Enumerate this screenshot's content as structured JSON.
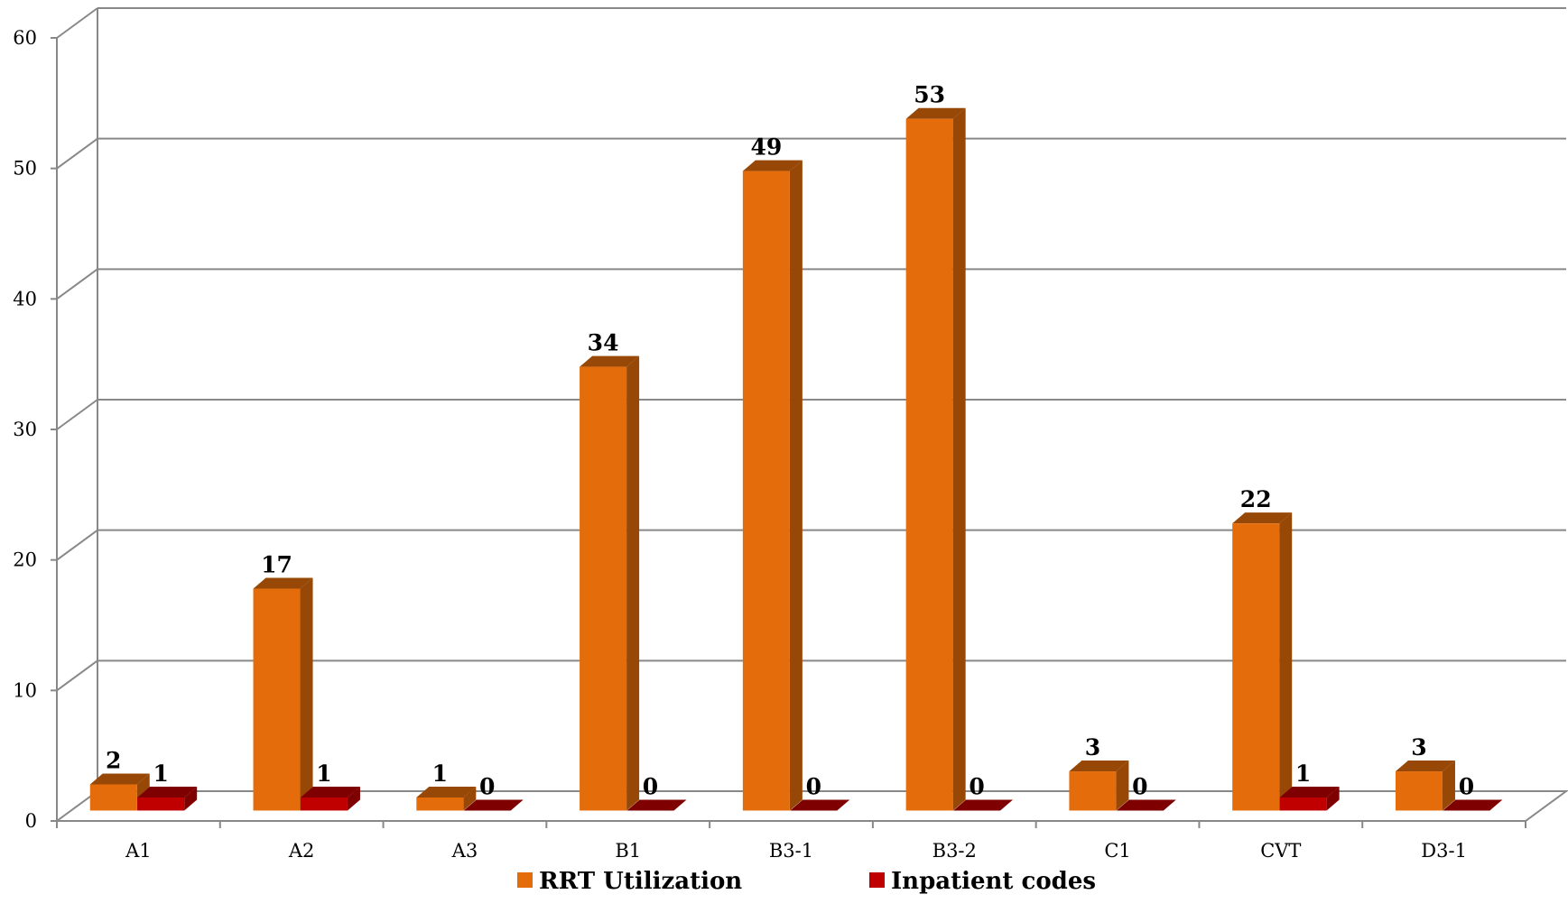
{
  "chart_data": {
    "type": "bar",
    "categories": [
      "A1",
      "A2",
      "A3",
      "B1",
      "B3-1",
      "B3-2",
      "C1",
      "CVT",
      "D3-1"
    ],
    "series": [
      {
        "name": "RRT Utilization",
        "values": [
          2,
          17,
          1,
          34,
          49,
          53,
          3,
          22,
          3
        ],
        "color": "#E46C0A",
        "side_color": "#974806"
      },
      {
        "name": "Inpatient codes",
        "values": [
          1,
          1,
          0,
          0,
          0,
          0,
          0,
          1,
          0
        ],
        "color": "#C00000",
        "side_color": "#7F0000"
      }
    ],
    "ylim": [
      0,
      60
    ],
    "yticks": [
      "0",
      "10",
      "20",
      "30",
      "40",
      "50",
      "60"
    ],
    "grid": true,
    "legend_placement": "bottom",
    "style": "3d-clustered-column"
  }
}
